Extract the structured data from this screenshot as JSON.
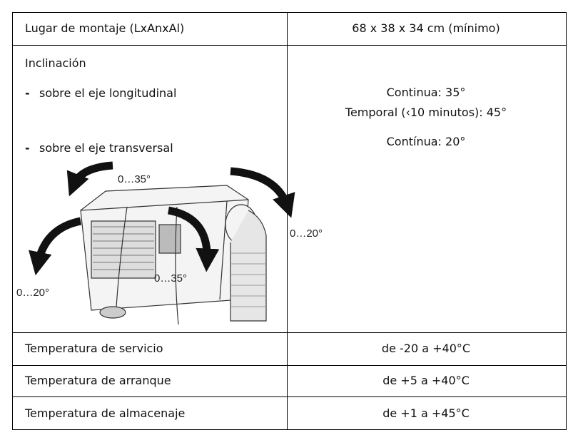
{
  "table": {
    "rows": [
      {
        "label": "Lugar de montaje (LxAnxAl)",
        "value": "68 x 38 x 34 cm (mínimo)"
      },
      {
        "label": "Inclinación",
        "items": [
          {
            "bullet": "-",
            "text": "sobre el eje longitudinal"
          },
          {
            "bullet": "-",
            "text": "sobre el eje transversal"
          }
        ],
        "values": [
          "Continua: 35°",
          "Temporal (‹10 minutos): 45°",
          "Contínua: 20°"
        ],
        "figure": {
          "labels": [
            "0…35°",
            "0…20°",
            "0…35°",
            "0…20°"
          ]
        }
      },
      {
        "label": "Temperatura de servicio",
        "value": "de -20 a +40°C"
      },
      {
        "label": "Temperatura de arranque",
        "value": "de +5 a +40°C"
      },
      {
        "label": "Temperatura de almacenaje",
        "value": "de +1 a +45°C"
      }
    ]
  }
}
